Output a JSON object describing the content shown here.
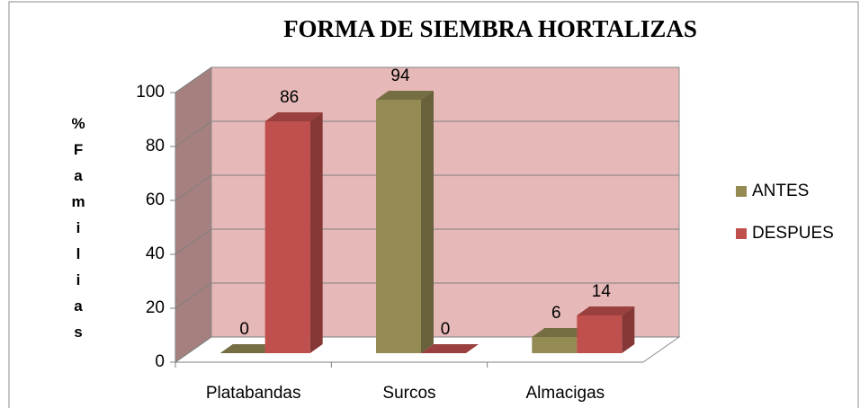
{
  "chart_data": {
    "type": "bar3d",
    "title": "FORMA DE SIEMBRA  HORTALIZAS",
    "y_label": "%Familias",
    "categories": [
      "Platabandas",
      "Surcos",
      "Almacigas"
    ],
    "series": [
      {
        "name": "ANTES",
        "color": "#948a54",
        "values": [
          0,
          94,
          6
        ]
      },
      {
        "name": "DESPUES",
        "color": "#c0504d",
        "values": [
          86,
          0,
          14
        ]
      }
    ],
    "ylim": [
      0,
      100
    ],
    "yticks": [
      0,
      20,
      40,
      60,
      80,
      100
    ],
    "grid": true,
    "legend": "right"
  }
}
